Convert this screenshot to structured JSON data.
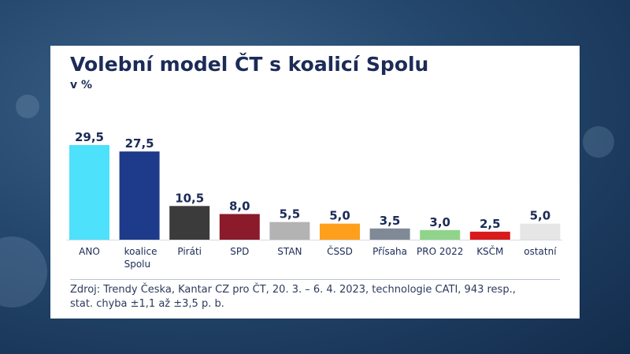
{
  "title": "Volební model ČT s koalicí Spolu",
  "subtitle": "v %",
  "source_line1": "Zdroj: Trendy Česka, Kantar CZ pro ČT, 20. 3. – 6. 4. 2023, technologie CATI, 943 resp.,",
  "source_line2": "stat. chyba ±1,1 až ±3,5 p. b.",
  "chart_data": {
    "type": "bar",
    "categories": [
      [
        "ANO"
      ],
      [
        "koalice",
        "Spolu"
      ],
      [
        "Piráti"
      ],
      [
        "SPD"
      ],
      [
        "STAN"
      ],
      [
        "ČSSD"
      ],
      [
        "Přísaha"
      ],
      [
        "PRO 2022"
      ],
      [
        "KSČM"
      ],
      [
        "ostatní"
      ]
    ],
    "values": [
      29.5,
      27.5,
      10.5,
      8.0,
      5.5,
      5.0,
      3.5,
      3.0,
      2.5,
      5.0
    ],
    "labels": [
      "29,5",
      "27,5",
      "10,5",
      "8,0",
      "5,5",
      "5,0",
      "3,5",
      "3,0",
      "2,5",
      "5,0"
    ],
    "colors": [
      "#4de1fb",
      "#1e3a8a",
      "#3b3b3b",
      "#8b1a2b",
      "#b3b3b3",
      "#ff9f1c",
      "#7f8a96",
      "#8fd48a",
      "#d91a1a",
      "#e6e6e6"
    ],
    "title": "Volební model ČT s koalicí Spolu",
    "ylabel": "v %",
    "ylim": [
      0,
      29.5
    ]
  }
}
